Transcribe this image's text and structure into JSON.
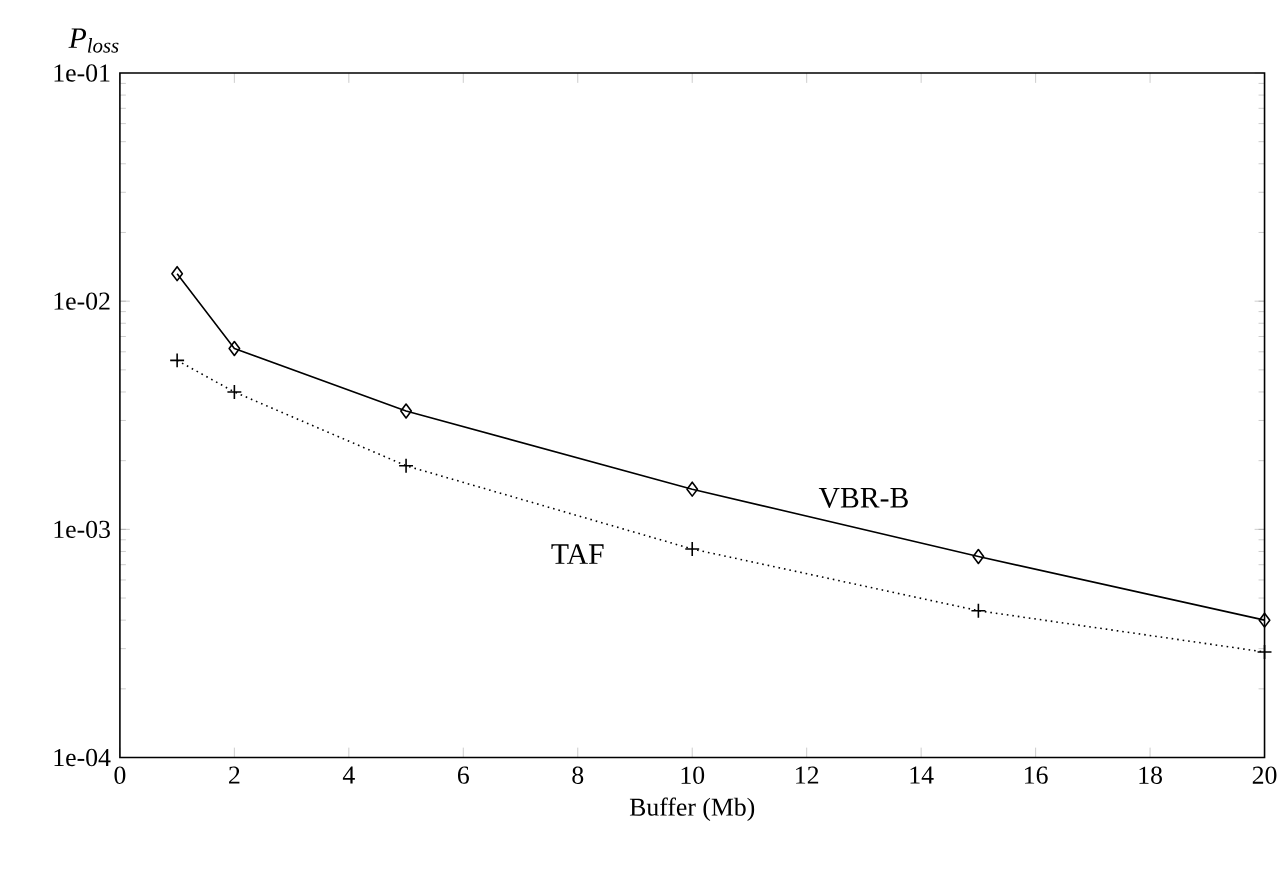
{
  "chart_data": {
    "type": "line",
    "ylabel": "P$_{loss}$",
    "xlabel": "Buffer (Mb)",
    "x": [
      1,
      2,
      5,
      10,
      15,
      20
    ],
    "series": [
      {
        "name": "VBR-B",
        "color": "#000000",
        "marker": "diamond",
        "line_style": "solid",
        "values": [
          0.0132,
          0.0062,
          0.0033,
          0.0015,
          0.00076,
          0.0004
        ]
      },
      {
        "name": "TAF",
        "color": "#000000",
        "marker": "cross",
        "line_style": "dotted",
        "values": [
          0.0055,
          0.004,
          0.0019,
          0.00082,
          0.00044,
          0.00029
        ]
      }
    ],
    "log": "y",
    "grid": false,
    "legend": false,
    "xlim": [
      0,
      20
    ],
    "xticks": [
      0,
      2,
      4,
      6,
      8,
      10,
      12,
      14,
      16,
      18,
      20
    ],
    "ylim": [
      0.0001,
      0.1
    ],
    "yticks": [
      {
        "value": 0.0001,
        "label": "1e-04"
      },
      {
        "value": 0.001,
        "label": "1e-03"
      },
      {
        "value": 0.01,
        "label": "1e-02"
      },
      {
        "value": 0.1,
        "label": "1e-01"
      }
    ]
  }
}
